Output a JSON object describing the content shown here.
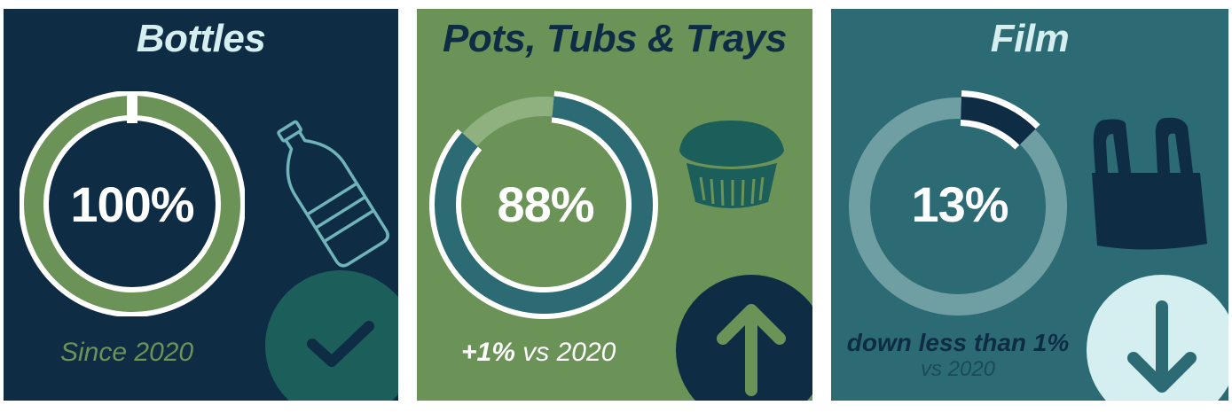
{
  "panels": {
    "bottles": {
      "title": "Bottles",
      "percent_label": "100%",
      "percent_value": 100,
      "caption": "Since 2020",
      "icon": "plastic-bottle-icon",
      "badge_icon": "checkmark-icon"
    },
    "pots": {
      "title": "Pots, Tubs & Trays",
      "percent_label": "88%",
      "percent_value": 88,
      "caption_bold": "+1%",
      "caption_rest": "vs 2020",
      "icon": "food-tub-icon",
      "badge_icon": "arrow-up-icon"
    },
    "film": {
      "title": "Film",
      "percent_label": "13%",
      "percent_value": 13,
      "caption_line1": "down less than 1%",
      "caption_line2": "vs 2020",
      "icon": "plastic-bag-icon",
      "badge_icon": "arrow-down-icon"
    }
  },
  "colors": {
    "navy": "#0f2c45",
    "green": "#6b9358",
    "teal": "#2c6b74",
    "dark_teal": "#1c5e5a",
    "pale": "#d5eef0"
  }
}
